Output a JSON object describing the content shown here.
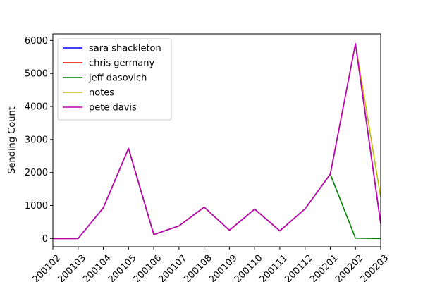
{
  "chart_data": {
    "type": "line",
    "title": "",
    "xlabel": "",
    "ylabel": "Sending Count",
    "categories": [
      "200102",
      "200103",
      "200104",
      "200105",
      "200106",
      "200107",
      "200108",
      "200109",
      "200110",
      "200111",
      "200112",
      "200201",
      "200202",
      "200203"
    ],
    "yticks": [
      0,
      1000,
      2000,
      3000,
      4000,
      5000,
      6000
    ],
    "ylim": [
      -250,
      6200
    ],
    "grid": false,
    "legend": "upper-left",
    "series": [
      {
        "name": "sara shackleton",
        "color": "#0000ff",
        "values": [
          0,
          0,
          930,
          2730,
          120,
          380,
          950,
          250,
          890,
          230,
          900,
          1950,
          5900,
          450
        ]
      },
      {
        "name": "chris germany",
        "color": "#ff0000",
        "values": [
          0,
          0,
          930,
          2730,
          120,
          380,
          950,
          250,
          890,
          230,
          900,
          1950,
          5900,
          450
        ]
      },
      {
        "name": "jeff dasovich",
        "color": "#008000",
        "values": [
          0,
          0,
          930,
          2730,
          120,
          380,
          950,
          250,
          890,
          230,
          900,
          1950,
          10,
          0
        ]
      },
      {
        "name": "notes",
        "color": "#bfbf00",
        "values": [
          0,
          0,
          930,
          2730,
          120,
          380,
          950,
          250,
          890,
          230,
          900,
          1950,
          5900,
          1250
        ]
      },
      {
        "name": "pete davis",
        "color": "#bf00bf",
        "values": [
          0,
          0,
          930,
          2730,
          120,
          380,
          950,
          250,
          890,
          230,
          900,
          1950,
          5900,
          450
        ]
      }
    ]
  }
}
